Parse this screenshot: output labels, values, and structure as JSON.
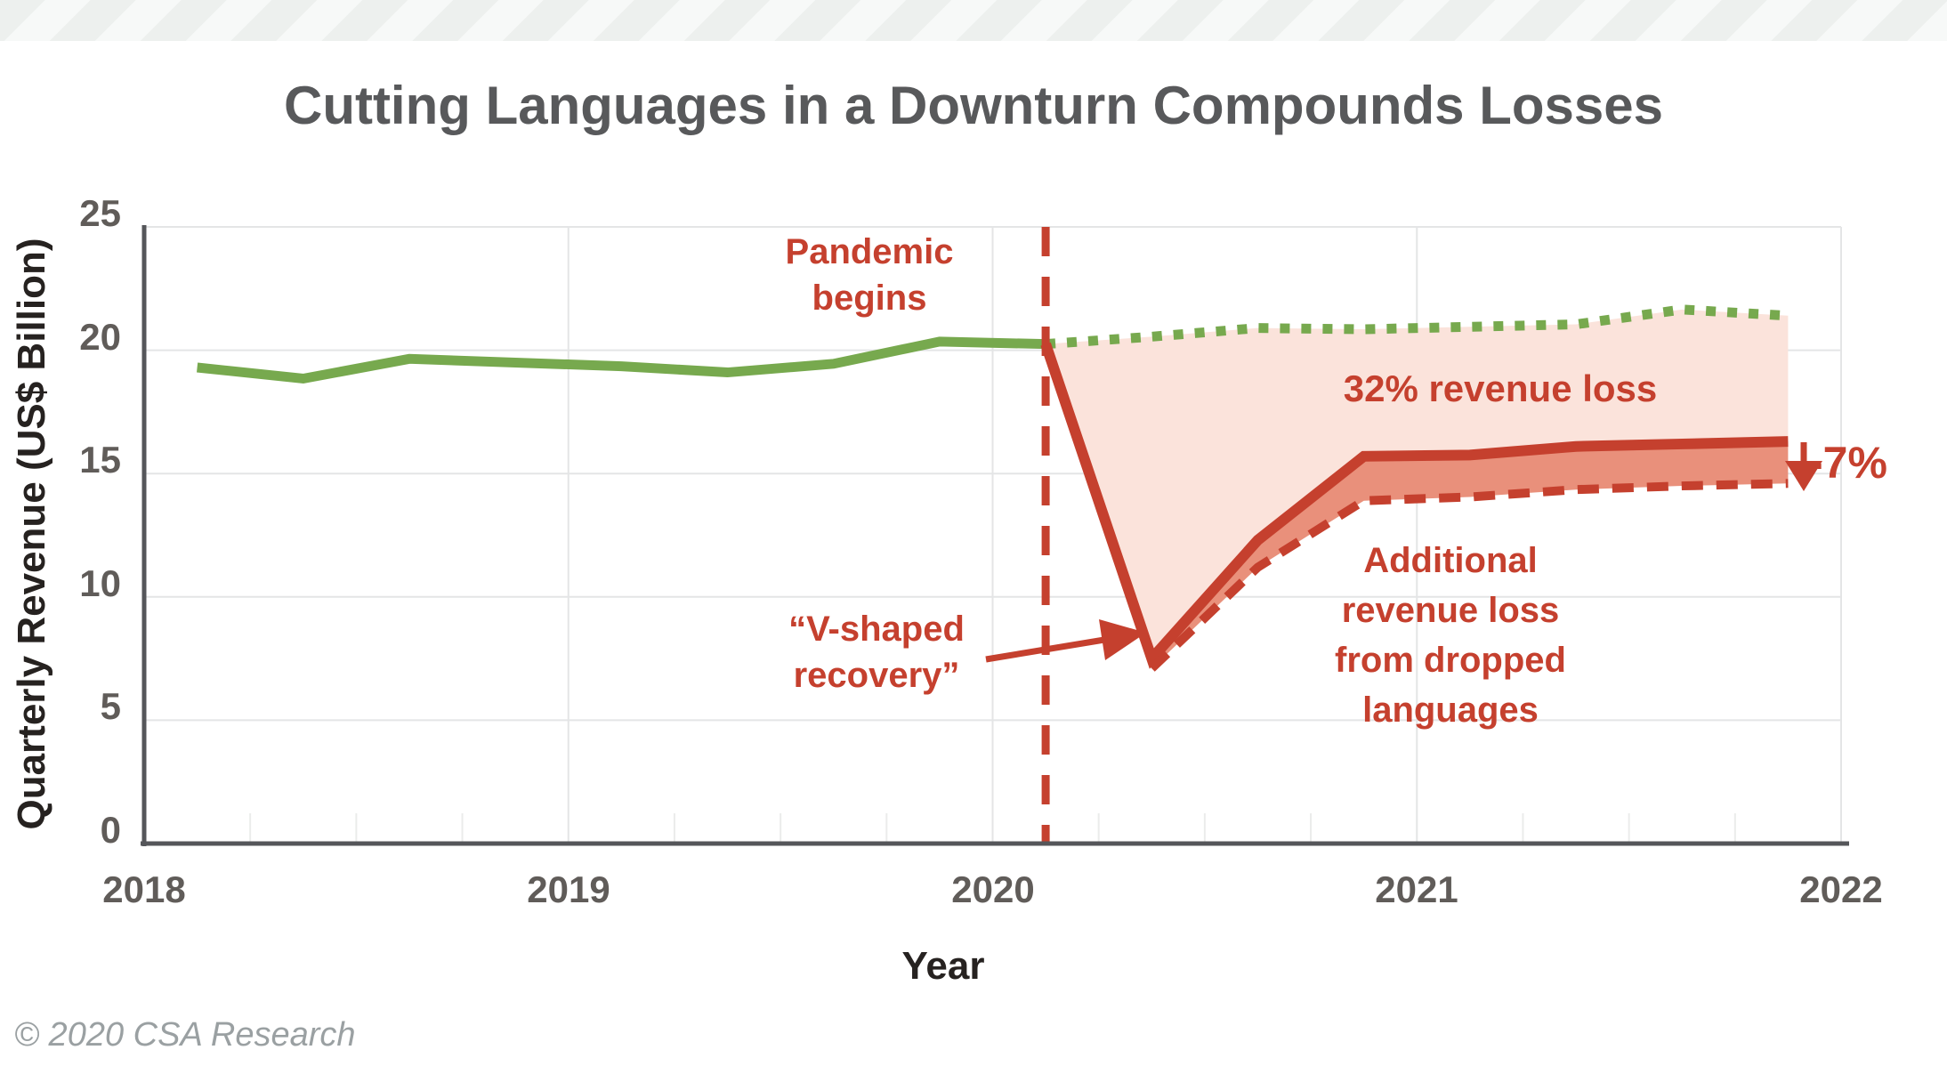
{
  "header": {
    "title": "Cutting Languages in a Downturn Compounds Losses"
  },
  "footer": {
    "copyright": "© 2020 CSA Research"
  },
  "axes": {
    "x": {
      "label": "Year",
      "ticks": [
        "2018",
        "2019",
        "2020",
        "2021",
        "2022"
      ]
    },
    "y": {
      "label": "Quarterly Revenue (US$ Billion)",
      "ticks": [
        "0",
        "5",
        "10",
        "15",
        "20",
        "25"
      ]
    }
  },
  "annotations": {
    "pandemic_begins": {
      "lines": [
        "Pandemic",
        "begins"
      ]
    },
    "revenue_loss_label": "32% revenue loss",
    "v_shaped_recovery": {
      "lines": [
        "“V-shaped",
        "recovery”"
      ]
    },
    "additional_loss": {
      "lines": [
        "Additional",
        "revenue loss",
        "from dropped",
        "languages"
      ]
    },
    "dropped_pct_label": "-7%"
  },
  "colors": {
    "accent_red": "#c5402e",
    "accent_green": "#77a94e",
    "pink_fill": "#fbe3db",
    "salmon_fill": "#e9907b",
    "grid": "#e4e5e6",
    "quarter_tick": "#ebeceb",
    "axis_line": "#55565a",
    "tick_text": "#605c59",
    "title_text": "#58595b",
    "axis_title_text": "#262220",
    "footer_text": "#9aa0a2"
  },
  "chart_data": {
    "type": "line",
    "title": "Cutting Languages in a Downturn Compounds Losses",
    "xlabel": "Year",
    "ylabel": "Quarterly Revenue (US$ Billion)",
    "xlim": [
      2018,
      2022
    ],
    "ylim": [
      0,
      25
    ],
    "x_ticks": [
      2018,
      2019,
      2020,
      2021,
      2022
    ],
    "y_ticks": [
      0,
      5,
      10,
      15,
      20,
      25
    ],
    "grid": true,
    "legend": false,
    "pandemic_begins_x": 2020.125,
    "series": [
      {
        "name": "actual-revenue-pre-pandemic",
        "style": "solid",
        "color": "#77a94e",
        "width": 11,
        "x": [
          2018.125,
          2018.375,
          2018.625,
          2018.875,
          2019.125,
          2019.375,
          2019.625,
          2019.875,
          2020.125
        ],
        "values": [
          19.3,
          18.85,
          19.65,
          19.5,
          19.35,
          19.1,
          19.45,
          20.35,
          20.25
        ]
      },
      {
        "name": "projected-revenue-no-pandemic",
        "style": "dotted",
        "color": "#77a94e",
        "width": 11,
        "x": [
          2020.125,
          2020.375,
          2020.625,
          2020.875,
          2021.125,
          2021.375,
          2021.625,
          2021.875
        ],
        "values": [
          20.25,
          20.55,
          20.9,
          20.85,
          20.95,
          21.05,
          21.65,
          21.4
        ]
      },
      {
        "name": "pandemic-revenue-v-shaped",
        "style": "solid",
        "color": "#c5402e",
        "width": 12,
        "x": [
          2020.125,
          2020.375,
          2020.625,
          2020.875,
          2021.125,
          2021.375,
          2021.625,
          2021.875
        ],
        "values": [
          20.25,
          7.5,
          12.3,
          15.7,
          15.75,
          16.1,
          16.2,
          16.3
        ]
      },
      {
        "name": "revenue-with-dropped-languages",
        "style": "dashed",
        "color": "#c5402e",
        "width": 10,
        "x": [
          2020.375,
          2020.625,
          2020.875,
          2021.125,
          2021.375,
          2021.625,
          2021.875
        ],
        "values": [
          7.1,
          11.2,
          13.9,
          14.05,
          14.35,
          14.5,
          14.6
        ]
      }
    ],
    "fills": [
      {
        "name": "revenue-loss-area",
        "between": [
          "projected-revenue-no-pandemic",
          "pandemic-revenue-v-shaped"
        ],
        "color": "#fbe3db"
      },
      {
        "name": "additional-loss-area",
        "between": [
          "pandemic-revenue-v-shaped",
          "revenue-with-dropped-languages"
        ],
        "color": "#e9907b"
      }
    ]
  }
}
